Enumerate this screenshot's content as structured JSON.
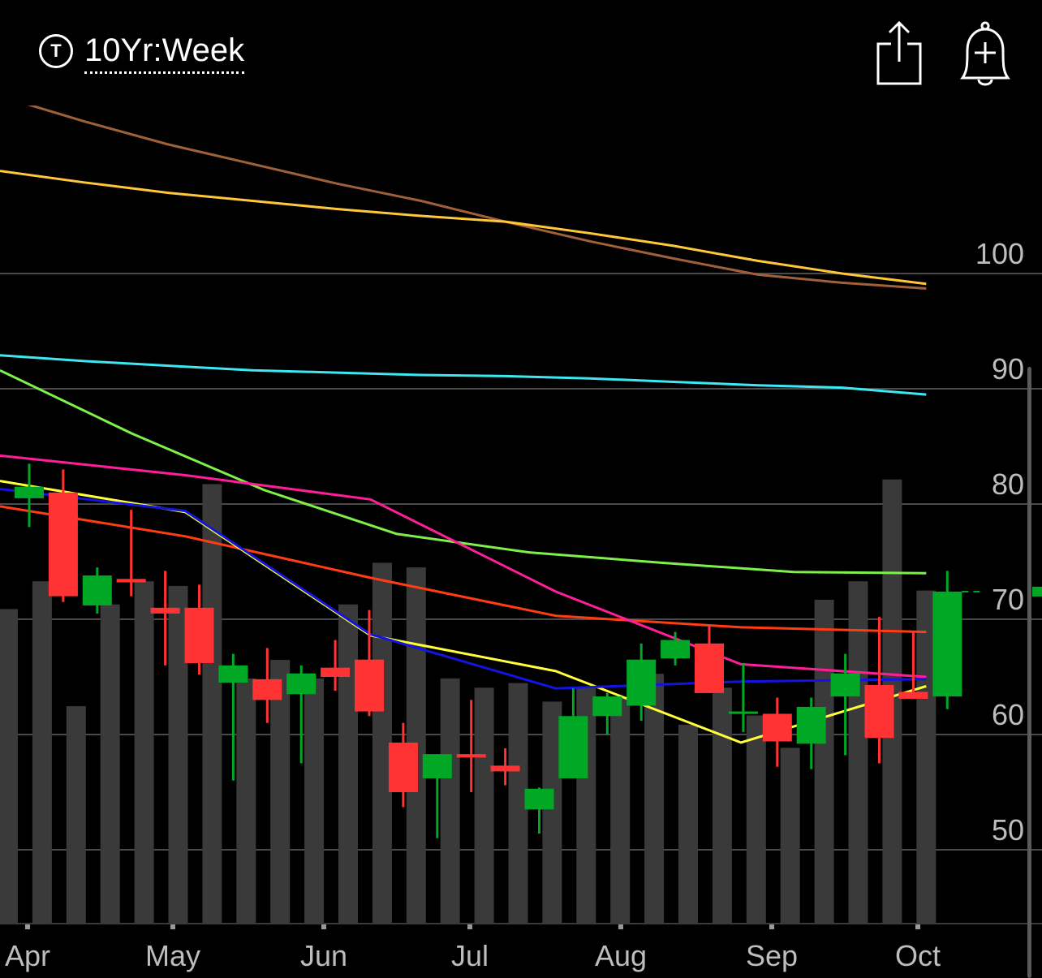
{
  "header": {
    "ticker_icon": "T",
    "period_label": "10Yr:Week",
    "share_icon": "share-icon",
    "alert_icon": "add-alert-bell-icon"
  },
  "chart_data": {
    "type": "candlestick",
    "x_labels": [
      "Apr",
      "May",
      "Jun",
      "Jul",
      "Aug",
      "Sep",
      "Oct"
    ],
    "y_ticks": [
      50,
      60,
      70,
      80,
      90,
      100
    ],
    "ylim": [
      43,
      118
    ],
    "grid": true,
    "colors": {
      "up": "#00a825",
      "down": "#ff3333",
      "volume": "#3a3a3a",
      "grid": "#4a4a4a"
    },
    "candles": [
      {
        "o": 80.5,
        "h": 83.5,
        "l": 78.0,
        "c": 81.5
      },
      {
        "o": 81.0,
        "h": 83.0,
        "l": 71.5,
        "c": 72.0
      },
      {
        "o": 71.2,
        "h": 74.5,
        "l": 70.5,
        "c": 73.8
      },
      {
        "o": 73.5,
        "h": 79.5,
        "l": 72.0,
        "c": 73.2
      },
      {
        "o": 71.0,
        "h": 74.2,
        "l": 66.0,
        "c": 70.5
      },
      {
        "o": 71.0,
        "h": 73.0,
        "l": 65.2,
        "c": 66.2
      },
      {
        "o": 64.5,
        "h": 67.0,
        "l": 56.0,
        "c": 66.0
      },
      {
        "o": 64.8,
        "h": 67.5,
        "l": 61.0,
        "c": 63.0
      },
      {
        "o": 63.5,
        "h": 66.0,
        "l": 57.5,
        "c": 65.3
      },
      {
        "o": 65.8,
        "h": 68.2,
        "l": 63.8,
        "c": 65.0
      },
      {
        "o": 66.5,
        "h": 70.8,
        "l": 61.6,
        "c": 62.0
      },
      {
        "o": 59.3,
        "h": 61.0,
        "l": 53.7,
        "c": 55.0
      },
      {
        "o": 56.2,
        "h": 58.3,
        "l": 51.0,
        "c": 58.3
      },
      {
        "o": 58.3,
        "h": 63.0,
        "l": 55.0,
        "c": 58.0
      },
      {
        "o": 57.3,
        "h": 58.8,
        "l": 55.6,
        "c": 56.8
      },
      {
        "o": 53.5,
        "h": 55.4,
        "l": 51.4,
        "c": 55.3
      },
      {
        "o": 56.2,
        "h": 64.0,
        "l": 56.2,
        "c": 61.6
      },
      {
        "o": 61.6,
        "h": 63.6,
        "l": 60.0,
        "c": 63.3
      },
      {
        "o": 62.5,
        "h": 67.9,
        "l": 61.2,
        "c": 66.5
      },
      {
        "o": 66.6,
        "h": 68.9,
        "l": 66.0,
        "c": 68.2
      },
      {
        "o": 67.9,
        "h": 69.5,
        "l": 63.6,
        "c": 63.6
      },
      {
        "o": 62.0,
        "h": 66.2,
        "l": 60.2,
        "c": 62.0
      },
      {
        "o": 61.8,
        "h": 63.2,
        "l": 57.2,
        "c": 59.4
      },
      {
        "o": 59.2,
        "h": 63.2,
        "l": 57.0,
        "c": 62.4
      },
      {
        "o": 63.3,
        "h": 67.0,
        "l": 58.2,
        "c": 65.3
      },
      {
        "o": 64.3,
        "h": 70.2,
        "l": 57.5,
        "c": 59.7
      },
      {
        "o": 63.7,
        "h": 69.0,
        "l": 63.1,
        "c": 63.1
      },
      {
        "o": 63.3,
        "h": 74.2,
        "l": 62.2,
        "c": 72.4
      }
    ],
    "volume": [
      0.68,
      0.74,
      0.47,
      0.69,
      0.74,
      0.73,
      0.95,
      0.53,
      0.57,
      0.53,
      0.69,
      0.78,
      0.77,
      0.53,
      0.51,
      0.52,
      0.48,
      0.51,
      0.49,
      0.54,
      0.43,
      0.51,
      0.45,
      0.38,
      0.7,
      0.74,
      0.96,
      0.72
    ],
    "series": [
      {
        "color": "#a0603a",
        "values": [
          115.4,
          113.2,
          111.2,
          109.5,
          107.8,
          106.3,
          104.5,
          102.8,
          101.3,
          99.9,
          99.2,
          98.7
        ]
      },
      {
        "color": "#ffc83a",
        "values": [
          108.9,
          107.9,
          107.0,
          106.3,
          105.6,
          105.0,
          104.5,
          103.5,
          102.4,
          101.1,
          100.0,
          99.1
        ]
      },
      {
        "color": "#3ee8f2",
        "values": [
          92.9,
          92.4,
          92.0,
          91.6,
          91.4,
          91.2,
          91.1,
          90.9,
          90.6,
          90.3,
          90.1,
          89.5
        ]
      },
      {
        "color": "#7ef04a",
        "values": [
          91.6,
          86.1,
          81.2,
          77.4,
          75.8,
          74.9,
          74.1,
          74.0
        ]
      },
      {
        "color": "#ff3c14",
        "values": [
          79.8,
          77.2,
          73.6,
          70.3,
          69.3,
          68.9
        ]
      },
      {
        "color": "#ff1e9a",
        "values": [
          84.2,
          82.5,
          80.4,
          72.4,
          66.1,
          65.0
        ]
      },
      {
        "color": "#ffff3c",
        "values": [
          82.0,
          79.3,
          68.6,
          65.5,
          59.3,
          64.2
        ]
      },
      {
        "color": "#1414e0",
        "values": [
          81.3,
          79.4,
          68.7,
          64.0,
          64.6,
          64.8
        ]
      }
    ]
  }
}
